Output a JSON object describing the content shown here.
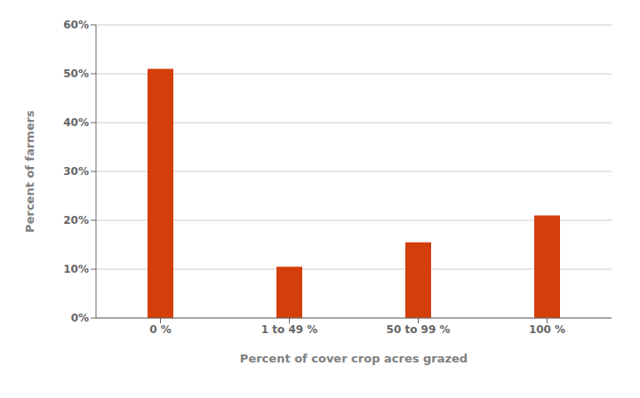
{
  "chart_data": {
    "type": "bar",
    "categories": [
      "0 %",
      "1 to 49 %",
      "50 to 99 %",
      "100 %"
    ],
    "values": [
      0.51,
      0.105,
      0.155,
      0.21
    ],
    "color": "#D43E0A",
    "xlabel": "Percent of cover crop acres grazed",
    "ylabel": "Percent of farmers",
    "ylim": [
      0,
      0.6
    ],
    "yticks": [
      {
        "value": 0.0,
        "label": "0%"
      },
      {
        "value": 0.1,
        "label": "10%"
      },
      {
        "value": 0.2,
        "label": "20%"
      },
      {
        "value": 0.3,
        "label": "30%"
      },
      {
        "value": 0.4,
        "label": "40%"
      },
      {
        "value": 0.5,
        "label": "50%"
      },
      {
        "value": 0.6,
        "label": "60%"
      }
    ],
    "grid": true
  }
}
